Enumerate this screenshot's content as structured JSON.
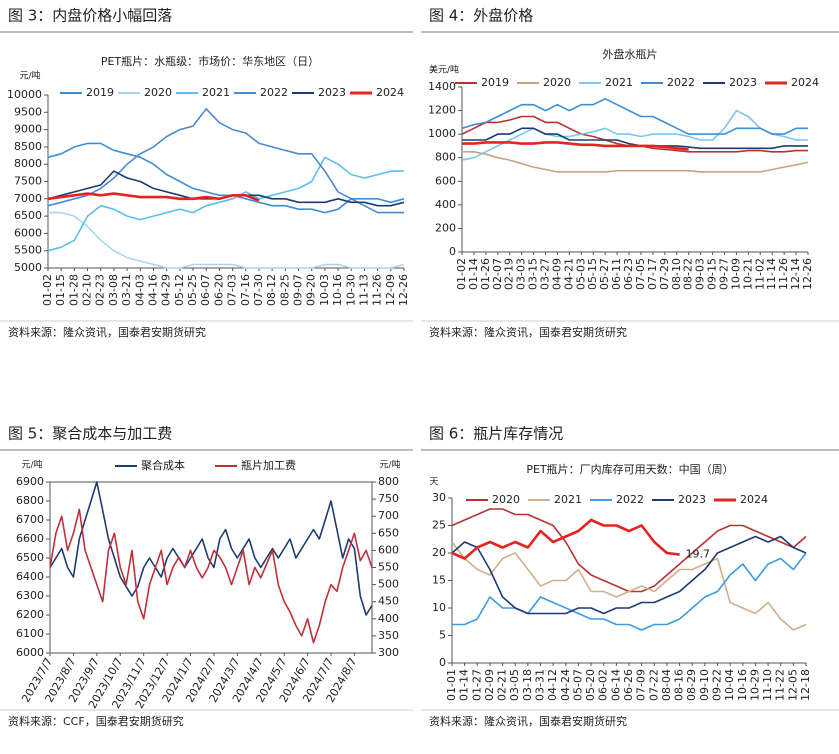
{
  "chart_data": [
    {
      "type": "line",
      "heading": "图 3：内盘价格小幅回落",
      "title": "PET瓶片：水瓶级：市场价：华东地区（日）",
      "y_unit": "元/吨",
      "source": "资料来源：隆众资讯，国泰君安期货研究",
      "categories": [
        "01-02",
        "01-15",
        "01-28",
        "02-10",
        "02-23",
        "03-08",
        "03-21",
        "04-03",
        "04-16",
        "04-29",
        "05-12",
        "05-25",
        "06-07",
        "06-20",
        "07-03",
        "07-16",
        "07-30",
        "08-12",
        "08-25",
        "09-07",
        "09-20",
        "10-03",
        "10-16",
        "10-30",
        "11-13",
        "11-26",
        "12-09",
        "12-26"
      ],
      "ylim": [
        5000,
        10000
      ],
      "yticks": [
        5000,
        5500,
        6000,
        6500,
        7000,
        7500,
        8000,
        8500,
        9000,
        9500,
        10000
      ],
      "legend": "top-left",
      "series": [
        {
          "name": "2019",
          "color": "#3d8ed3",
          "values": [
            8200,
            8300,
            8500,
            8600,
            8600,
            8400,
            8300,
            8200,
            8000,
            7700,
            7500,
            7300,
            7200,
            7100,
            7100,
            7000,
            6900,
            6800,
            6800,
            6700,
            6700,
            6600,
            6700,
            7000,
            7000,
            7000,
            6900,
            7000
          ]
        },
        {
          "name": "2020",
          "color": "#a9d6f2",
          "values": [
            6600,
            6600,
            6500,
            6200,
            5800,
            5500,
            5300,
            5200,
            5100,
            5000,
            5000,
            5100,
            5100,
            5100,
            5100,
            5000,
            5000,
            5000,
            5000,
            5000,
            5000,
            5100,
            5100,
            5000,
            5000,
            5000,
            5000,
            5100
          ]
        },
        {
          "name": "2021",
          "color": "#5cbfea",
          "values": [
            5500,
            5600,
            5800,
            6500,
            6800,
            6700,
            6500,
            6400,
            6500,
            6600,
            6700,
            6600,
            6800,
            6900,
            7000,
            7200,
            7000,
            7100,
            7200,
            7300,
            7500,
            8200,
            8000,
            7700,
            7600,
            7700,
            7800,
            7800
          ]
        },
        {
          "name": "2022",
          "color": "#4a8bd0",
          "values": [
            6800,
            6900,
            7000,
            7100,
            7300,
            7600,
            8000,
            8300,
            8500,
            8800,
            9000,
            9100,
            9600,
            9200,
            9000,
            8900,
            8600,
            8500,
            8400,
            8300,
            8300,
            7800,
            7200,
            7000,
            6800,
            6600,
            6600,
            6600
          ]
        },
        {
          "name": "2023",
          "color": "#1d3b73",
          "values": [
            7000,
            7100,
            7200,
            7300,
            7400,
            7800,
            7600,
            7500,
            7300,
            7200,
            7100,
            7000,
            7000,
            7000,
            7100,
            7100,
            7100,
            7000,
            7000,
            6900,
            6900,
            6900,
            7000,
            6900,
            6900,
            6800,
            6800,
            6900
          ]
        },
        {
          "name": "2024",
          "color": "#e52421",
          "values": [
            7000,
            7050,
            7100,
            7150,
            7100,
            7150,
            7100,
            7050,
            7050,
            7050,
            7000,
            7000,
            7050,
            7000,
            7100,
            7100,
            6950,
            null,
            null,
            null,
            null,
            null,
            null,
            null,
            null,
            null,
            null,
            null
          ]
        }
      ]
    },
    {
      "type": "line",
      "heading": "图 4：外盘价格",
      "title": "外盘水瓶片",
      "y_unit": "美元/吨",
      "source": "资料来源：隆众资讯，国泰君安期货研究",
      "categories": [
        "01-02",
        "01-14",
        "01-26",
        "02-07",
        "02-19",
        "03-03",
        "03-15",
        "03-27",
        "04-09",
        "04-21",
        "05-03",
        "05-15",
        "05-27",
        "06-11",
        "06-23",
        "07-05",
        "07-17",
        "07-29",
        "08-10",
        "08-22",
        "09-03",
        "09-15",
        "09-27",
        "10-09",
        "10-21",
        "11-02",
        "11-14",
        "11-26",
        "12-14",
        "12-26"
      ],
      "ylim": [
        0,
        1400
      ],
      "yticks": [
        0,
        200,
        400,
        600,
        800,
        1000,
        1200,
        1400
      ],
      "legend": "top-left",
      "series": [
        {
          "name": "2019",
          "color": "#b83232",
          "values": [
            1000,
            1050,
            1100,
            1100,
            1120,
            1150,
            1150,
            1100,
            1100,
            1050,
            1000,
            980,
            950,
            920,
            900,
            900,
            880,
            870,
            860,
            850,
            850,
            850,
            850,
            850,
            860,
            860,
            850,
            850,
            860,
            860
          ]
        },
        {
          "name": "2020",
          "color": "#c9a27e",
          "values": [
            850,
            850,
            830,
            800,
            780,
            750,
            720,
            700,
            680,
            680,
            680,
            680,
            680,
            690,
            690,
            690,
            690,
            690,
            690,
            690,
            680,
            680,
            680,
            680,
            680,
            680,
            700,
            720,
            740,
            760
          ]
        },
        {
          "name": "2021",
          "color": "#79c8ef",
          "values": [
            780,
            800,
            850,
            900,
            950,
            1000,
            1050,
            1000,
            980,
            980,
            1000,
            1020,
            1050,
            1000,
            1000,
            980,
            1000,
            1000,
            1000,
            980,
            950,
            950,
            1050,
            1200,
            1150,
            1050,
            1000,
            980,
            950,
            950
          ]
        },
        {
          "name": "2022",
          "color": "#3f8fd6",
          "values": [
            1050,
            1080,
            1100,
            1150,
            1200,
            1250,
            1250,
            1200,
            1250,
            1200,
            1250,
            1250,
            1300,
            1250,
            1200,
            1150,
            1150,
            1100,
            1050,
            1000,
            1000,
            1000,
            1000,
            1050,
            1050,
            1050,
            1000,
            1000,
            1050,
            1050
          ]
        },
        {
          "name": "2023",
          "color": "#1d3b73",
          "values": [
            950,
            950,
            950,
            1000,
            1000,
            1050,
            1050,
            1000,
            1000,
            950,
            950,
            950,
            950,
            950,
            920,
            900,
            900,
            900,
            900,
            890,
            880,
            880,
            880,
            880,
            880,
            880,
            880,
            900,
            900,
            900
          ]
        },
        {
          "name": "2024",
          "color": "#e52421",
          "values": [
            920,
            920,
            930,
            930,
            930,
            920,
            920,
            930,
            930,
            920,
            910,
            910,
            900,
            900,
            900,
            900,
            900,
            890,
            880,
            870,
            null,
            null,
            null,
            null,
            null,
            null,
            null,
            null,
            null,
            null
          ]
        }
      ]
    },
    {
      "type": "line",
      "heading": "图 5：聚合成本与加工费",
      "y_unit": "元/吨",
      "y2_unit": "元/吨",
      "source": "资料来源：CCF，国泰君安期货研究",
      "categories": [
        "2023/7/7",
        null,
        null,
        null,
        "2023/8/7",
        null,
        null,
        null,
        "2023/9/7",
        null,
        null,
        null,
        "2023/10/7",
        null,
        null,
        null,
        "2023/11/7",
        null,
        null,
        null,
        "2023/12/7",
        null,
        null,
        null,
        "2024/1/7",
        null,
        null,
        null,
        "2024/2/7",
        null,
        null,
        null,
        "2024/3/7",
        null,
        null,
        null,
        "2024/4/7",
        null,
        null,
        null,
        "2024/5/7",
        null,
        null,
        null,
        "2024/6/7",
        null,
        null,
        null,
        "2024/7/7",
        null,
        null,
        null,
        "2024/8/7",
        null,
        null,
        null
      ],
      "ylim": [
        6000,
        6900
      ],
      "yticks": [
        6000,
        6100,
        6200,
        6300,
        6400,
        6500,
        6600,
        6700,
        6800,
        6900
      ],
      "y2lim": [
        300,
        800
      ],
      "y2ticks": [
        300,
        350,
        400,
        450,
        500,
        550,
        600,
        650,
        700,
        750,
        800
      ],
      "legend": "top",
      "series": [
        {
          "name": "聚合成本",
          "color": "#1d3b73",
          "values": [
            6450,
            6500,
            6550,
            6450,
            6400,
            6600,
            6700,
            6800,
            6900,
            6750,
            6600,
            6500,
            6400,
            6350,
            6300,
            6350,
            6450,
            6500,
            6450,
            6400,
            6500,
            6550,
            6500,
            6450,
            6500,
            6550,
            6600,
            6500,
            6450,
            6600,
            6650,
            6550,
            6500,
            6550,
            6600,
            6500,
            6450,
            6500,
            6550,
            6500,
            6550,
            6600,
            6500,
            6550,
            6600,
            6650,
            6600,
            6700,
            6800,
            6650,
            6500,
            6600,
            6550,
            6300,
            6200,
            6250
          ]
        },
        {
          "name": "瓶片加工费",
          "color": "#c0303a",
          "axis": "y2",
          "values": [
            550,
            650,
            700,
            600,
            650,
            720,
            600,
            550,
            500,
            450,
            600,
            650,
            550,
            500,
            600,
            450,
            400,
            500,
            550,
            600,
            500,
            550,
            580,
            550,
            600,
            550,
            520,
            550,
            600,
            580,
            550,
            500,
            550,
            600,
            500,
            550,
            520,
            560,
            600,
            500,
            450,
            420,
            380,
            350,
            400,
            330,
            380,
            450,
            500,
            480,
            550,
            600,
            650,
            570,
            600,
            550
          ]
        }
      ]
    },
    {
      "type": "line",
      "heading": "图 6：瓶片库存情况",
      "title": "PET瓶片：厂内库存可用天数：中国（周）",
      "y_unit": "天",
      "source": "资料来源：隆众资讯，国泰君安期货研究",
      "categories": [
        "01-01",
        "01-14",
        "01-27",
        "02-09",
        "02-21",
        "03-05",
        "03-18",
        "03-31",
        "04-12",
        "04-24",
        "05-07",
        "05-20",
        "06-02",
        "06-14",
        "06-26",
        "07-09",
        "07-22",
        "08-04",
        "08-16",
        "08-29",
        "09-10",
        "09-22",
        "10-04",
        "10-16",
        "10-29",
        "11-10",
        "11-22",
        "12-05",
        "12-18"
      ],
      "ylim": [
        0,
        30
      ],
      "yticks": [
        0,
        5,
        10,
        15,
        20,
        25,
        30
      ],
      "legend": "top-left",
      "series": [
        {
          "name": "2020",
          "color": "#b83232",
          "values": [
            25,
            26,
            27,
            28,
            28,
            27,
            27,
            26,
            25,
            22,
            18,
            16,
            15,
            14,
            13,
            13,
            14,
            16,
            18,
            20,
            22,
            24,
            25,
            25,
            24,
            23,
            22,
            21,
            23
          ]
        },
        {
          "name": "2021",
          "color": "#d2ae8c",
          "values": [
            22,
            19,
            17,
            16,
            19,
            20,
            17,
            14,
            15,
            15,
            17,
            13,
            13,
            12,
            13,
            14,
            13,
            15,
            17,
            17,
            18,
            19,
            11,
            10,
            9,
            11,
            8,
            6,
            7
          ]
        },
        {
          "name": "2022",
          "color": "#3f9be0",
          "values": [
            7,
            7,
            8,
            12,
            10,
            10,
            9,
            12,
            11,
            10,
            9,
            8,
            8,
            7,
            7,
            6,
            7,
            7,
            8,
            10,
            12,
            13,
            16,
            18,
            15,
            18,
            19,
            17,
            20
          ]
        },
        {
          "name": "2023",
          "color": "#1d3b73",
          "values": [
            20,
            22,
            21,
            17,
            12,
            10,
            9,
            9,
            9,
            9,
            10,
            10,
            9,
            10,
            10,
            11,
            11,
            12,
            13,
            15,
            17,
            20,
            21,
            22,
            23,
            22,
            23,
            21,
            20
          ]
        },
        {
          "name": "2024",
          "color": "#e52421",
          "data_label": true,
          "values": [
            20,
            19,
            21,
            22,
            21,
            22,
            21,
            24,
            22,
            23,
            24,
            26,
            25,
            25,
            24,
            25,
            22,
            20,
            19.7,
            null,
            null,
            null,
            null,
            null,
            null,
            null,
            null,
            null,
            null
          ]
        }
      ]
    }
  ]
}
